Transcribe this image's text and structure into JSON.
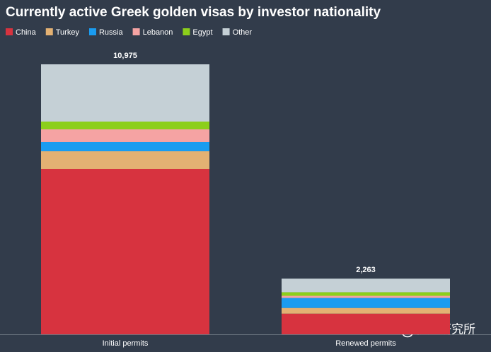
{
  "chart_data": {
    "type": "stacked_bar",
    "title": "Currently active Greek golden visas by investor nationality",
    "categories": [
      "Initial permits",
      "Renewed permits"
    ],
    "series": [
      {
        "name": "China",
        "color": "#d7333f",
        "values": [
          6723,
          841
        ]
      },
      {
        "name": "Turkey",
        "color": "#e3b173",
        "values": [
          718,
          232
        ]
      },
      {
        "name": "Russia",
        "color": "#1a9cf0",
        "values": [
          374,
          406
        ]
      },
      {
        "name": "Lebanon",
        "color": "#f5a3a3",
        "values": [
          517,
          87
        ]
      },
      {
        "name": "Egypt",
        "color": "#8ccf1b",
        "values": [
          316,
          145
        ]
      },
      {
        "name": "Other",
        "color": "#c5d0d6",
        "values": [
          2327,
          552
        ]
      }
    ],
    "totals": [
      10975,
      2263
    ],
    "totals_labels": [
      "10,975",
      "2,263"
    ],
    "watermark": "移民研究所"
  }
}
